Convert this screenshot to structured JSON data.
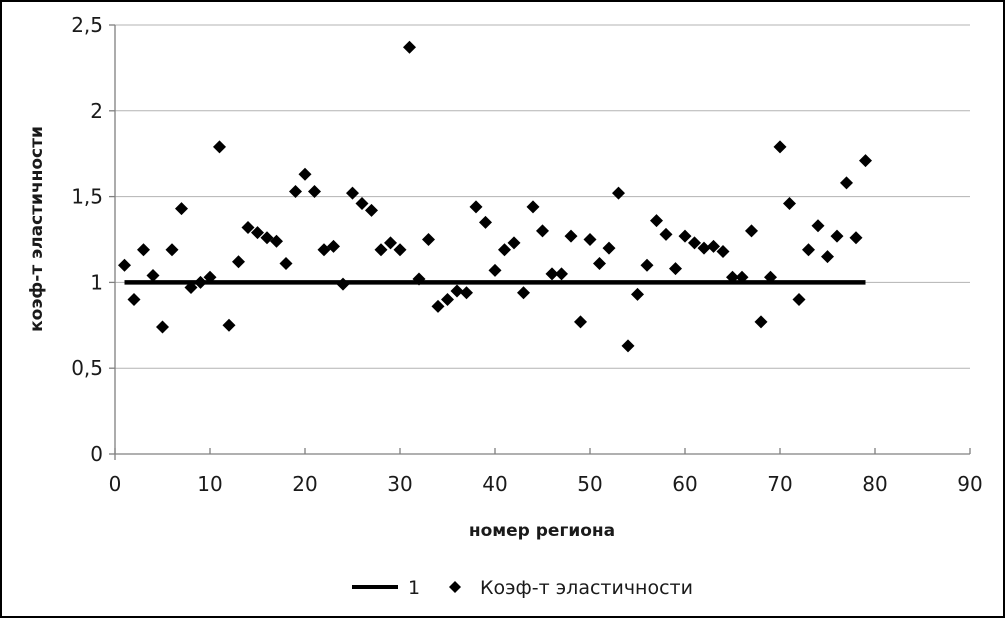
{
  "figure": {
    "background": "#ffffff",
    "border_color": "#000000",
    "text_color": "#1a1a1a",
    "axis_color": "#808080",
    "gridline_color": "#b3b3b3",
    "marker_color": "#000000"
  },
  "chart_data": {
    "type": "scatter",
    "title": "",
    "xlabel": "номер региона",
    "ylabel": "коэф-т эластичности",
    "xlim": [
      0,
      90
    ],
    "ylim": [
      0,
      2.5
    ],
    "x_tick_step": 10,
    "y_tick_step": 0.5,
    "x_tick_labels": [
      "0",
      "10",
      "20",
      "30",
      "40",
      "50",
      "60",
      "70",
      "80",
      "90"
    ],
    "y_tick_labels": [
      "0",
      "0,5",
      "1",
      "1,5",
      "2",
      "2,5"
    ],
    "grid": "horizontal",
    "legend_position": "bottom-center",
    "series": [
      {
        "name": "1",
        "type": "line",
        "color": "#000000",
        "y_value": 1.0,
        "x_start": 1,
        "x_end": 79
      },
      {
        "name": "Коэф-т эластичности",
        "type": "scatter",
        "marker": "diamond",
        "color": "#000000",
        "points": [
          [
            1,
            1.1
          ],
          [
            2,
            0.9
          ],
          [
            3,
            1.19
          ],
          [
            4,
            1.04
          ],
          [
            5,
            0.74
          ],
          [
            6,
            1.19
          ],
          [
            7,
            1.43
          ],
          [
            8,
            0.97
          ],
          [
            9,
            1.0
          ],
          [
            10,
            1.03
          ],
          [
            11,
            1.79
          ],
          [
            12,
            0.75
          ],
          [
            13,
            1.12
          ],
          [
            14,
            1.32
          ],
          [
            15,
            1.29
          ],
          [
            16,
            1.26
          ],
          [
            17,
            1.24
          ],
          [
            18,
            1.11
          ],
          [
            19,
            1.53
          ],
          [
            20,
            1.63
          ],
          [
            21,
            1.53
          ],
          [
            22,
            1.19
          ],
          [
            23,
            1.21
          ],
          [
            24,
            0.99
          ],
          [
            25,
            1.52
          ],
          [
            26,
            1.46
          ],
          [
            27,
            1.42
          ],
          [
            28,
            1.19
          ],
          [
            29,
            1.23
          ],
          [
            30,
            1.19
          ],
          [
            31,
            2.37
          ],
          [
            32,
            1.02
          ],
          [
            33,
            1.25
          ],
          [
            34,
            0.86
          ],
          [
            35,
            0.9
          ],
          [
            36,
            0.95
          ],
          [
            37,
            0.94
          ],
          [
            38,
            1.44
          ],
          [
            39,
            1.35
          ],
          [
            40,
            1.07
          ],
          [
            41,
            1.19
          ],
          [
            42,
            1.23
          ],
          [
            43,
            0.94
          ],
          [
            44,
            1.44
          ],
          [
            45,
            1.3
          ],
          [
            46,
            1.05
          ],
          [
            47,
            1.05
          ],
          [
            48,
            1.27
          ],
          [
            49,
            0.77
          ],
          [
            50,
            1.25
          ],
          [
            51,
            1.11
          ],
          [
            52,
            1.2
          ],
          [
            53,
            1.52
          ],
          [
            54,
            0.63
          ],
          [
            55,
            0.93
          ],
          [
            56,
            1.1
          ],
          [
            57,
            1.36
          ],
          [
            58,
            1.28
          ],
          [
            59,
            1.08
          ],
          [
            60,
            1.27
          ],
          [
            61,
            1.23
          ],
          [
            62,
            1.2
          ],
          [
            63,
            1.21
          ],
          [
            64,
            1.18
          ],
          [
            65,
            1.03
          ],
          [
            66,
            1.03
          ],
          [
            67,
            1.3
          ],
          [
            68,
            0.77
          ],
          [
            69,
            1.03
          ],
          [
            70,
            1.79
          ],
          [
            71,
            1.46
          ],
          [
            72,
            0.9
          ],
          [
            73,
            1.19
          ],
          [
            74,
            1.33
          ],
          [
            75,
            1.15
          ],
          [
            76,
            1.27
          ],
          [
            77,
            1.58
          ],
          [
            78,
            1.26
          ],
          [
            79,
            1.71
          ]
        ]
      }
    ]
  },
  "legend": {
    "items": [
      {
        "label": "1",
        "marker": "line"
      },
      {
        "label": "Коэф-т эластичности",
        "marker": "diamond"
      }
    ]
  }
}
